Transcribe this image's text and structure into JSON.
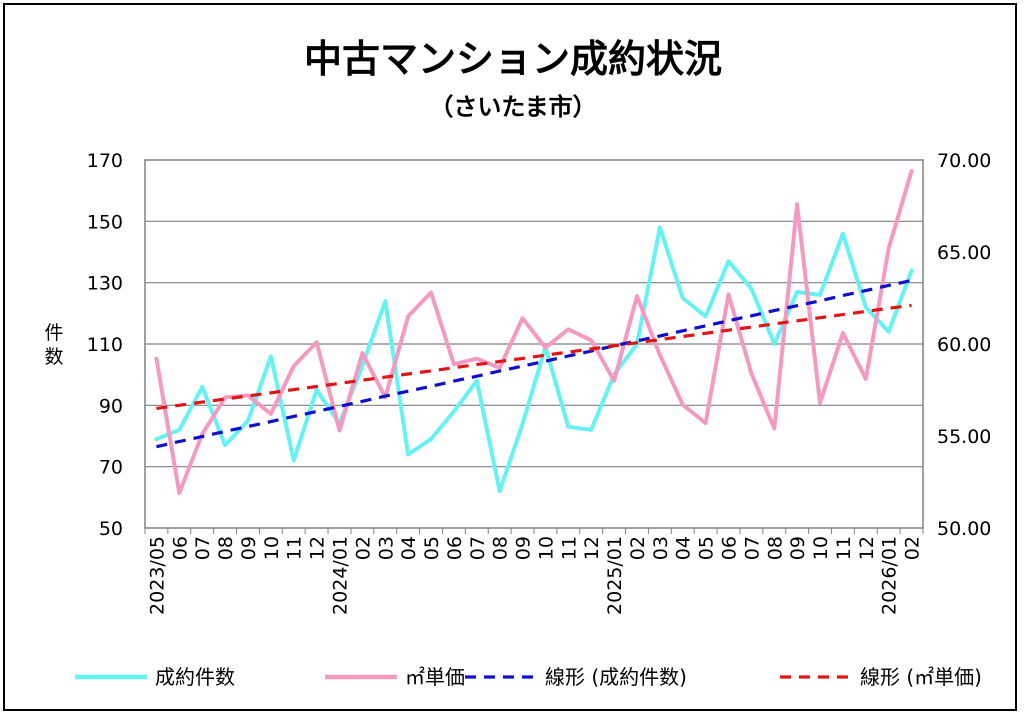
{
  "chart_data": {
    "type": "line",
    "title": "中古マンション成約状況",
    "subtitle": "（さいたま市）",
    "ylabel_left": "件数",
    "x": [
      "2023/05",
      "06",
      "07",
      "08",
      "09",
      "10",
      "11",
      "12",
      "2024/01",
      "02",
      "03",
      "04",
      "05",
      "06",
      "07",
      "08",
      "09",
      "10",
      "11",
      "12",
      "2025/01",
      "02",
      "03",
      "04",
      "05",
      "06",
      "07",
      "08",
      "09",
      "10",
      "11",
      "12",
      "2026/01",
      "02"
    ],
    "y_left_ticks": [
      "50",
      "70",
      "90",
      "110",
      "130",
      "150",
      "170"
    ],
    "y_right_ticks": [
      "50.00",
      "55.00",
      "60.00",
      "65.00",
      "70.00"
    ],
    "ylim_left": [
      50,
      170
    ],
    "ylim_right": [
      50,
      70
    ],
    "grid": true,
    "legend_position": "bottom",
    "series": [
      {
        "name": "成約件数",
        "axis": "left",
        "color": "#66f2f5",
        "style": "solid",
        "values": [
          79,
          82,
          96,
          77,
          85,
          106,
          72,
          95,
          84,
          103,
          124,
          74,
          79,
          88,
          98,
          62,
          84,
          109,
          83,
          82,
          100,
          110,
          148,
          125,
          119,
          137,
          128,
          110,
          127,
          126,
          146,
          122,
          114,
          134
        ]
      },
      {
        "name": "㎡単価",
        "axis": "right",
        "color": "#f49ac2",
        "style": "solid",
        "values": [
          59.2,
          51.9,
          55.1,
          57.1,
          57.2,
          56.2,
          58.8,
          60.1,
          55.3,
          59.5,
          57.1,
          61.5,
          62.8,
          58.9,
          59.2,
          58.7,
          61.4,
          59.8,
          60.8,
          60.2,
          58.0,
          62.6,
          59.4,
          56.7,
          55.7,
          62.7,
          58.4,
          55.4,
          67.6,
          56.8,
          60.6,
          58.1,
          65.2,
          69.4
        ]
      },
      {
        "name": "線形 (成約件数)",
        "axis": "left",
        "color": "#1010cc",
        "style": "dashed",
        "values": [
          76.5,
          78.2,
          79.8,
          81.5,
          83.1,
          84.7,
          86.4,
          88.0,
          89.7,
          91.3,
          93.0,
          94.6,
          96.2,
          97.9,
          99.5,
          101.2,
          102.8,
          104.4,
          106.1,
          107.7,
          109.4,
          111.0,
          112.6,
          114.3,
          115.9,
          117.6,
          119.2,
          120.9,
          122.5,
          124.1,
          125.8,
          127.4,
          129.1,
          130.7
        ]
      },
      {
        "name": "線形 (㎡単価)",
        "axis": "right",
        "color": "#e01515",
        "style": "dashed",
        "values": [
          56.5,
          56.67,
          56.84,
          57.01,
          57.18,
          57.35,
          57.52,
          57.69,
          57.86,
          58.03,
          58.2,
          58.37,
          58.54,
          58.71,
          58.88,
          59.05,
          59.22,
          59.39,
          59.56,
          59.73,
          59.9,
          60.07,
          60.24,
          60.41,
          60.58,
          60.75,
          60.92,
          61.09,
          61.26,
          61.43,
          61.6,
          61.77,
          61.94,
          62.1
        ]
      }
    ]
  }
}
